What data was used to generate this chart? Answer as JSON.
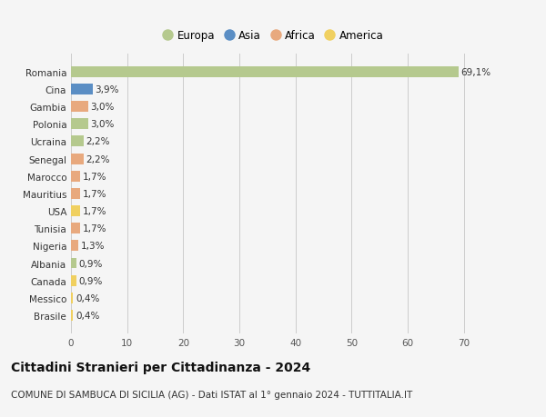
{
  "countries": [
    "Romania",
    "Cina",
    "Gambia",
    "Polonia",
    "Ucraina",
    "Senegal",
    "Marocco",
    "Mauritius",
    "USA",
    "Tunisia",
    "Nigeria",
    "Albania",
    "Canada",
    "Messico",
    "Brasile"
  ],
  "values": [
    69.1,
    3.9,
    3.0,
    3.0,
    2.2,
    2.2,
    1.7,
    1.7,
    1.7,
    1.7,
    1.3,
    0.9,
    0.9,
    0.4,
    0.4
  ],
  "labels": [
    "69,1%",
    "3,9%",
    "3,0%",
    "3,0%",
    "2,2%",
    "2,2%",
    "1,7%",
    "1,7%",
    "1,7%",
    "1,7%",
    "1,3%",
    "0,9%",
    "0,9%",
    "0,4%",
    "0,4%"
  ],
  "continents": [
    "Europa",
    "Asia",
    "Africa",
    "Europa",
    "Europa",
    "Africa",
    "Africa",
    "Africa",
    "America",
    "Africa",
    "Africa",
    "Europa",
    "America",
    "America",
    "America"
  ],
  "continent_colors": {
    "Europa": "#b5c98e",
    "Asia": "#5b8ec4",
    "Africa": "#e8a97e",
    "America": "#f0d060"
  },
  "legend_items": [
    "Europa",
    "Asia",
    "Africa",
    "America"
  ],
  "title": "Cittadini Stranieri per Cittadinanza - 2024",
  "subtitle": "COMUNE DI SAMBUCA DI SICILIA (AG) - Dati ISTAT al 1° gennaio 2024 - TUTTITALIA.IT",
  "xlim": [
    0,
    72
  ],
  "xticks": [
    0,
    10,
    20,
    30,
    40,
    50,
    60,
    70
  ],
  "bg_color": "#f5f5f5",
  "grid_color": "#cccccc",
  "title_fontsize": 10,
  "subtitle_fontsize": 7.5,
  "label_fontsize": 7.5,
  "tick_fontsize": 7.5,
  "legend_fontsize": 8.5,
  "bar_height": 0.62
}
